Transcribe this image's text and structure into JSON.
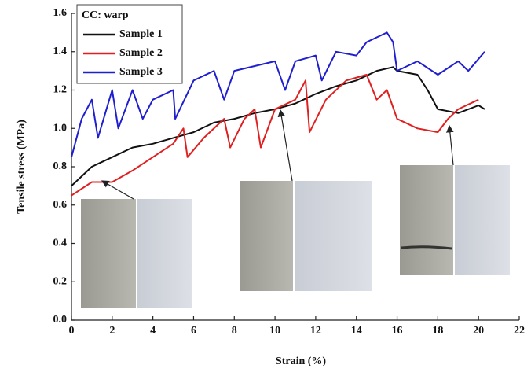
{
  "chart_data": {
    "type": "line",
    "xlabel": "Strain (%)",
    "ylabel": "Tensile stress (MPa)",
    "legend_title": "CC: warp",
    "legend": "upper left",
    "xlim": [
      0,
      22
    ],
    "ylim": [
      0,
      1.6
    ],
    "xticks": [
      0,
      2,
      4,
      6,
      8,
      10,
      12,
      14,
      16,
      18,
      20,
      22
    ],
    "yticks": [
      {
        "value": 0,
        "label": "0.0"
      },
      {
        "value": 0.2,
        "label": "0.2"
      },
      {
        "value": 0.4,
        "label": "0.4"
      },
      {
        "value": 0.6,
        "label": "0.6"
      },
      {
        "value": 0.8,
        "label": "0.8"
      },
      {
        "value": 1.0,
        "label": "1.0"
      },
      {
        "value": 1.2,
        "label": "1.2"
      },
      {
        "value": 1.4,
        "label": "1.4"
      },
      {
        "value": 1.6,
        "label": "1.6"
      }
    ],
    "series": [
      {
        "name": "Sample 1",
        "color": "#111111",
        "x": [
          0,
          1,
          2,
          3,
          4,
          5,
          6,
          7,
          8,
          9,
          10,
          11,
          12,
          13,
          14,
          15,
          15.8,
          16,
          17,
          17.5,
          18,
          19,
          20,
          20.3
        ],
        "values": [
          0.7,
          0.8,
          0.85,
          0.9,
          0.92,
          0.95,
          0.98,
          1.03,
          1.05,
          1.08,
          1.1,
          1.13,
          1.18,
          1.22,
          1.25,
          1.3,
          1.32,
          1.3,
          1.28,
          1.2,
          1.1,
          1.08,
          1.12,
          1.1
        ]
      },
      {
        "name": "Sample 2",
        "color": "#e02020",
        "x": [
          0,
          1,
          2,
          3,
          4,
          5,
          5.5,
          5.7,
          6.5,
          7.5,
          7.8,
          8.5,
          9,
          9.3,
          10,
          11,
          11.5,
          11.7,
          12.5,
          13.5,
          14.5,
          15,
          15.5,
          16,
          17,
          18,
          18.5,
          19,
          20
        ],
        "values": [
          0.65,
          0.72,
          0.72,
          0.78,
          0.85,
          0.92,
          1.0,
          0.85,
          0.95,
          1.05,
          0.9,
          1.05,
          1.1,
          0.9,
          1.1,
          1.15,
          1.25,
          0.98,
          1.15,
          1.25,
          1.28,
          1.15,
          1.2,
          1.05,
          1.0,
          0.98,
          1.05,
          1.1,
          1.15
        ]
      },
      {
        "name": "Sample 3",
        "color": "#1f1fd0",
        "x": [
          0,
          0.5,
          1,
          1.3,
          2,
          2.3,
          3,
          3.5,
          4,
          5,
          5.1,
          6,
          7,
          7.5,
          8,
          10,
          10.5,
          11,
          12,
          12.3,
          13,
          14,
          14.5,
          15.5,
          15.8,
          16,
          17,
          18,
          19,
          19.5,
          20.3
        ],
        "values": [
          0.85,
          1.05,
          1.15,
          0.95,
          1.2,
          1.0,
          1.2,
          1.05,
          1.15,
          1.2,
          1.05,
          1.25,
          1.3,
          1.15,
          1.3,
          1.35,
          1.2,
          1.35,
          1.38,
          1.25,
          1.4,
          1.38,
          1.45,
          1.5,
          1.45,
          1.3,
          1.35,
          1.28,
          1.35,
          1.3,
          1.4
        ]
      }
    ]
  }
}
